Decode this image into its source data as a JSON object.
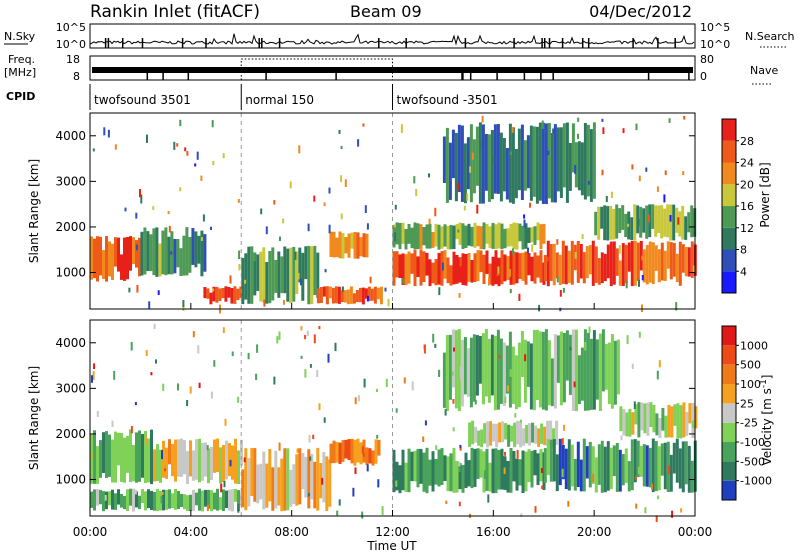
{
  "header": {
    "station": "Rankin Inlet (fitACF)",
    "beam": "Beam 09",
    "date": "04/Dec/2012"
  },
  "status_panels": {
    "nsky": {
      "label": "N.Sky",
      "left_ticks": [
        "10^5",
        "10^0"
      ],
      "right_label": "N.Search",
      "right_ticks": [
        "10^5",
        "10^0"
      ]
    },
    "freq": {
      "label_line1": "Freq.",
      "label_line2": "[MHz]",
      "left_ticks": [
        "18",
        "8"
      ],
      "right_label": "Nave",
      "right_ticks": [
        "80",
        "0"
      ]
    },
    "cpid": {
      "label": "CPID",
      "segments": [
        {
          "text": "twofsound 3501",
          "start_hour": 0,
          "end_hour": 6
        },
        {
          "text": "normal 150",
          "start_hour": 6,
          "end_hour": 12
        },
        {
          "text": "twofsound -3501",
          "start_hour": 12,
          "end_hour": 24
        }
      ]
    }
  },
  "chart_data": [
    {
      "type": "heatmap",
      "name": "power",
      "ylabel": "Slant Range [km]",
      "y_ticks": [
        1000,
        2000,
        3000,
        4000
      ],
      "ylim": [
        200,
        4500
      ],
      "xlim": [
        0,
        24
      ],
      "colorbar": {
        "label": "Power [dB]",
        "ticks": [
          "4",
          "8",
          "12",
          "16",
          "20",
          "24",
          "28"
        ],
        "colors": [
          "#1a1aff",
          "#2e4fb8",
          "#2f7a5e",
          "#4e9a55",
          "#c9c83a",
          "#f08a1e",
          "#ef5a18",
          "#e8201a"
        ]
      },
      "bands": [
        {
          "start_hour": 0.0,
          "end_hour": 2.0,
          "range_min": 800,
          "range_max": 1800,
          "level": 0.9
        },
        {
          "start_hour": 2.0,
          "end_hour": 4.5,
          "range_min": 900,
          "range_max": 2000,
          "level": 0.35
        },
        {
          "start_hour": 4.5,
          "end_hour": 6.0,
          "range_min": 300,
          "range_max": 700,
          "level": 0.9
        },
        {
          "start_hour": 6.0,
          "end_hour": 9.0,
          "range_min": 300,
          "range_max": 1600,
          "level": 0.4
        },
        {
          "start_hour": 9.0,
          "end_hour": 11.5,
          "range_min": 300,
          "range_max": 700,
          "level": 0.85
        },
        {
          "start_hour": 9.5,
          "end_hour": 11.0,
          "range_min": 1300,
          "range_max": 1900,
          "level": 0.7
        },
        {
          "start_hour": 12.0,
          "end_hour": 18.0,
          "range_min": 700,
          "range_max": 1500,
          "level": 0.9
        },
        {
          "start_hour": 12.0,
          "end_hour": 18.0,
          "range_min": 1500,
          "range_max": 2100,
          "level": 0.5
        },
        {
          "start_hour": 18.0,
          "end_hour": 24.0,
          "range_min": 700,
          "range_max": 1700,
          "level": 0.85
        },
        {
          "start_hour": 20.0,
          "end_hour": 24.0,
          "range_min": 1700,
          "range_max": 2500,
          "level": 0.45
        },
        {
          "start_hour": 14.0,
          "end_hour": 20.0,
          "range_min": 2500,
          "range_max": 4300,
          "level": 0.25
        }
      ]
    },
    {
      "type": "heatmap",
      "name": "velocity",
      "ylabel": "Slant Range [km]",
      "y_ticks": [
        1000,
        2000,
        3000,
        4000
      ],
      "ylim": [
        200,
        4500
      ],
      "xlim": [
        0,
        24
      ],
      "x_ticks": [
        "00:00",
        "04:00",
        "08:00",
        "12:00",
        "16:00",
        "20:00",
        "00:00"
      ],
      "xlabel": "Time UT",
      "colorbar": {
        "label": "Velocity [m s",
        "label_sup": "-1",
        "label_end": "]",
        "ticks": [
          "1000",
          "500",
          "100",
          "25",
          "-25",
          "-100",
          "-500",
          "-1000"
        ],
        "colors": [
          "#1f3fbf",
          "#2f7a5e",
          "#4aa35a",
          "#7fd157",
          "#c8c8c8",
          "#f5a01e",
          "#f07a18",
          "#ee4a18",
          "#e01818"
        ]
      },
      "bands": [
        {
          "start_hour": 0.0,
          "end_hour": 2.5,
          "range_min": 900,
          "range_max": 2100,
          "level": 0.25
        },
        {
          "start_hour": 2.5,
          "end_hour": 6.0,
          "range_min": 900,
          "range_max": 1900,
          "level": 0.55
        },
        {
          "start_hour": 0.0,
          "end_hour": 6.0,
          "range_min": 300,
          "range_max": 800,
          "level": 0.3
        },
        {
          "start_hour": 6.0,
          "end_hour": 9.5,
          "range_min": 300,
          "range_max": 1700,
          "level": 0.6
        },
        {
          "start_hour": 9.5,
          "end_hour": 11.5,
          "range_min": 1300,
          "range_max": 1900,
          "level": 0.75
        },
        {
          "start_hour": 12.0,
          "end_hour": 18.0,
          "range_min": 700,
          "range_max": 1700,
          "level": 0.25
        },
        {
          "start_hour": 15.0,
          "end_hour": 18.5,
          "range_min": 1700,
          "range_max": 2300,
          "level": 0.45
        },
        {
          "start_hour": 18.0,
          "end_hour": 24.0,
          "range_min": 700,
          "range_max": 1900,
          "level": 0.2
        },
        {
          "start_hour": 21.0,
          "end_hour": 24.0,
          "range_min": 1900,
          "range_max": 2700,
          "level": 0.45
        },
        {
          "start_hour": 14.0,
          "end_hour": 21.0,
          "range_min": 2500,
          "range_max": 4300,
          "level": 0.3
        }
      ]
    }
  ]
}
